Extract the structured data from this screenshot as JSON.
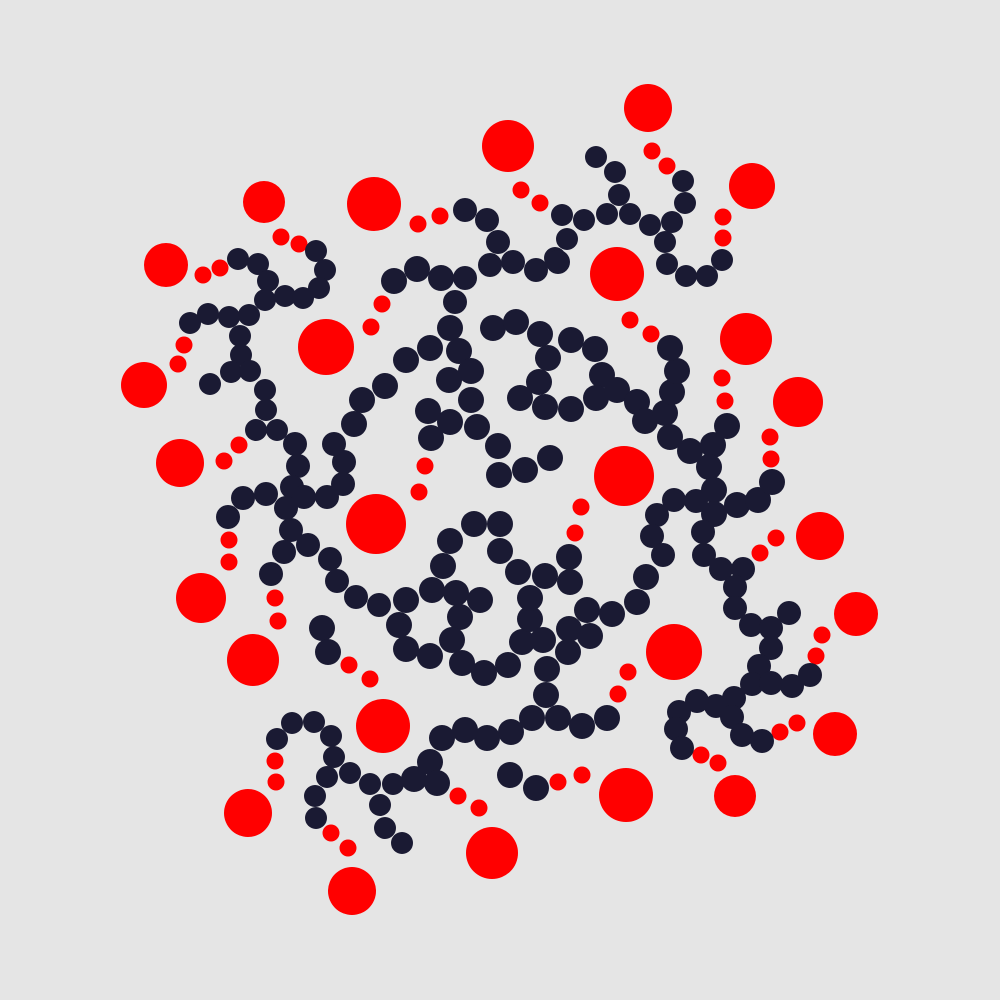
{
  "artwork": {
    "colors": {
      "background": "#e5e5e5",
      "chain": "#1a1a33",
      "accent": "#ff0000"
    }
  }
}
